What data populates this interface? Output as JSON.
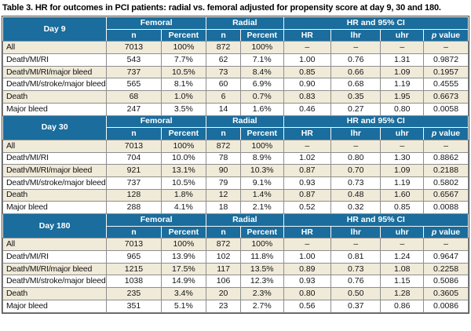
{
  "title": "Table 3. HR for outcomes in PCI patients: radial vs. femoral adjusted for propensity score at day 9, 30 and 180.",
  "columns": {
    "group_femoral": "Femoral",
    "group_radial": "Radial",
    "group_hr_ci": "HR and 95% CI",
    "sub": [
      "n",
      "Percent",
      "n",
      "Percent",
      "HR",
      "lhr",
      "uhr",
      "p value"
    ]
  },
  "colors": {
    "header_blue": "#1a6d9d",
    "row_cream": "#f0ead9",
    "row_white": "#ffffff",
    "grid_gray": "#8e8e8e",
    "outer_border": "#4a4a4c"
  },
  "sections": [
    {
      "day": "Day 9",
      "rows": [
        {
          "label": "All",
          "cells": [
            "7013",
            "100%",
            "872",
            "100%",
            "–",
            "–",
            "–",
            "–"
          ]
        },
        {
          "label": "Death/MI/RI",
          "cells": [
            "543",
            "7.7%",
            "62",
            "7.1%",
            "1.00",
            "0.76",
            "1.31",
            "0.9872"
          ]
        },
        {
          "label": "Death/MI/RI/major bleed",
          "cells": [
            "737",
            "10.5%",
            "73",
            "8.4%",
            "0.85",
            "0.66",
            "1.09",
            "0.1957"
          ]
        },
        {
          "label": "Death/MI/stroke/major bleed",
          "cells": [
            "565",
            "8.1%",
            "60",
            "6.9%",
            "0.90",
            "0.68",
            "1.19",
            "0.4555"
          ]
        },
        {
          "label": "Death",
          "cells": [
            "68",
            "1.0%",
            "6",
            "0.7%",
            "0.83",
            "0.35",
            "1.95",
            "0.6673"
          ]
        },
        {
          "label": "Major bleed",
          "cells": [
            "247",
            "3.5%",
            "14",
            "1.6%",
            "0.46",
            "0.27",
            "0.80",
            "0.0058"
          ]
        }
      ]
    },
    {
      "day": "Day 30",
      "rows": [
        {
          "label": "All",
          "cells": [
            "7013",
            "100%",
            "872",
            "100%",
            "–",
            "–",
            "–",
            "–"
          ]
        },
        {
          "label": "Death/MI/RI",
          "cells": [
            "704",
            "10.0%",
            "78",
            "8.9%",
            "1.02",
            "0.80",
            "1.30",
            "0.8862"
          ]
        },
        {
          "label": "Death/MI/RI/major bleed",
          "cells": [
            "921",
            "13.1%",
            "90",
            "10.3%",
            "0.87",
            "0.70",
            "1.09",
            "0.2188"
          ]
        },
        {
          "label": "Death/MI/stroke/major bleed",
          "cells": [
            "737",
            "10.5%",
            "79",
            "9.1%",
            "0.93",
            "0.73",
            "1.19",
            "0.5802"
          ]
        },
        {
          "label": "Death",
          "cells": [
            "128",
            "1.8%",
            "12",
            "1.4%",
            "0.87",
            "0.48",
            "1.60",
            "0.6567"
          ]
        },
        {
          "label": "Major bleed",
          "cells": [
            "288",
            "4.1%",
            "18",
            "2.1%",
            "0.52",
            "0.32",
            "0.85",
            "0.0088"
          ]
        }
      ]
    },
    {
      "day": "Day 180",
      "rows": [
        {
          "label": "All",
          "cells": [
            "7013",
            "100%",
            "872",
            "100%",
            "–",
            "–",
            "–",
            "–"
          ]
        },
        {
          "label": "Death/MI/RI",
          "cells": [
            "965",
            "13.9%",
            "102",
            "11.8%",
            "1.00",
            "0.81",
            "1.24",
            "0.9647"
          ]
        },
        {
          "label": "Death/MI/RI/major bleed",
          "cells": [
            "1215",
            "17.5%",
            "117",
            "13.5%",
            "0.89",
            "0.73",
            "1.08",
            "0.2258"
          ]
        },
        {
          "label": "Death/MI/stroke/major bleed",
          "cells": [
            "1038",
            "14.9%",
            "106",
            "12.3%",
            "0.93",
            "0.76",
            "1.15",
            "0.5086"
          ]
        },
        {
          "label": "Death",
          "cells": [
            "235",
            "3.4%",
            "20",
            "2.3%",
            "0.80",
            "0.50",
            "1.28",
            "0.3605"
          ]
        },
        {
          "label": "Major bleed",
          "cells": [
            "351",
            "5.1%",
            "23",
            "2.7%",
            "0.56",
            "0.37",
            "0.86",
            "0.0086"
          ]
        }
      ]
    }
  ]
}
